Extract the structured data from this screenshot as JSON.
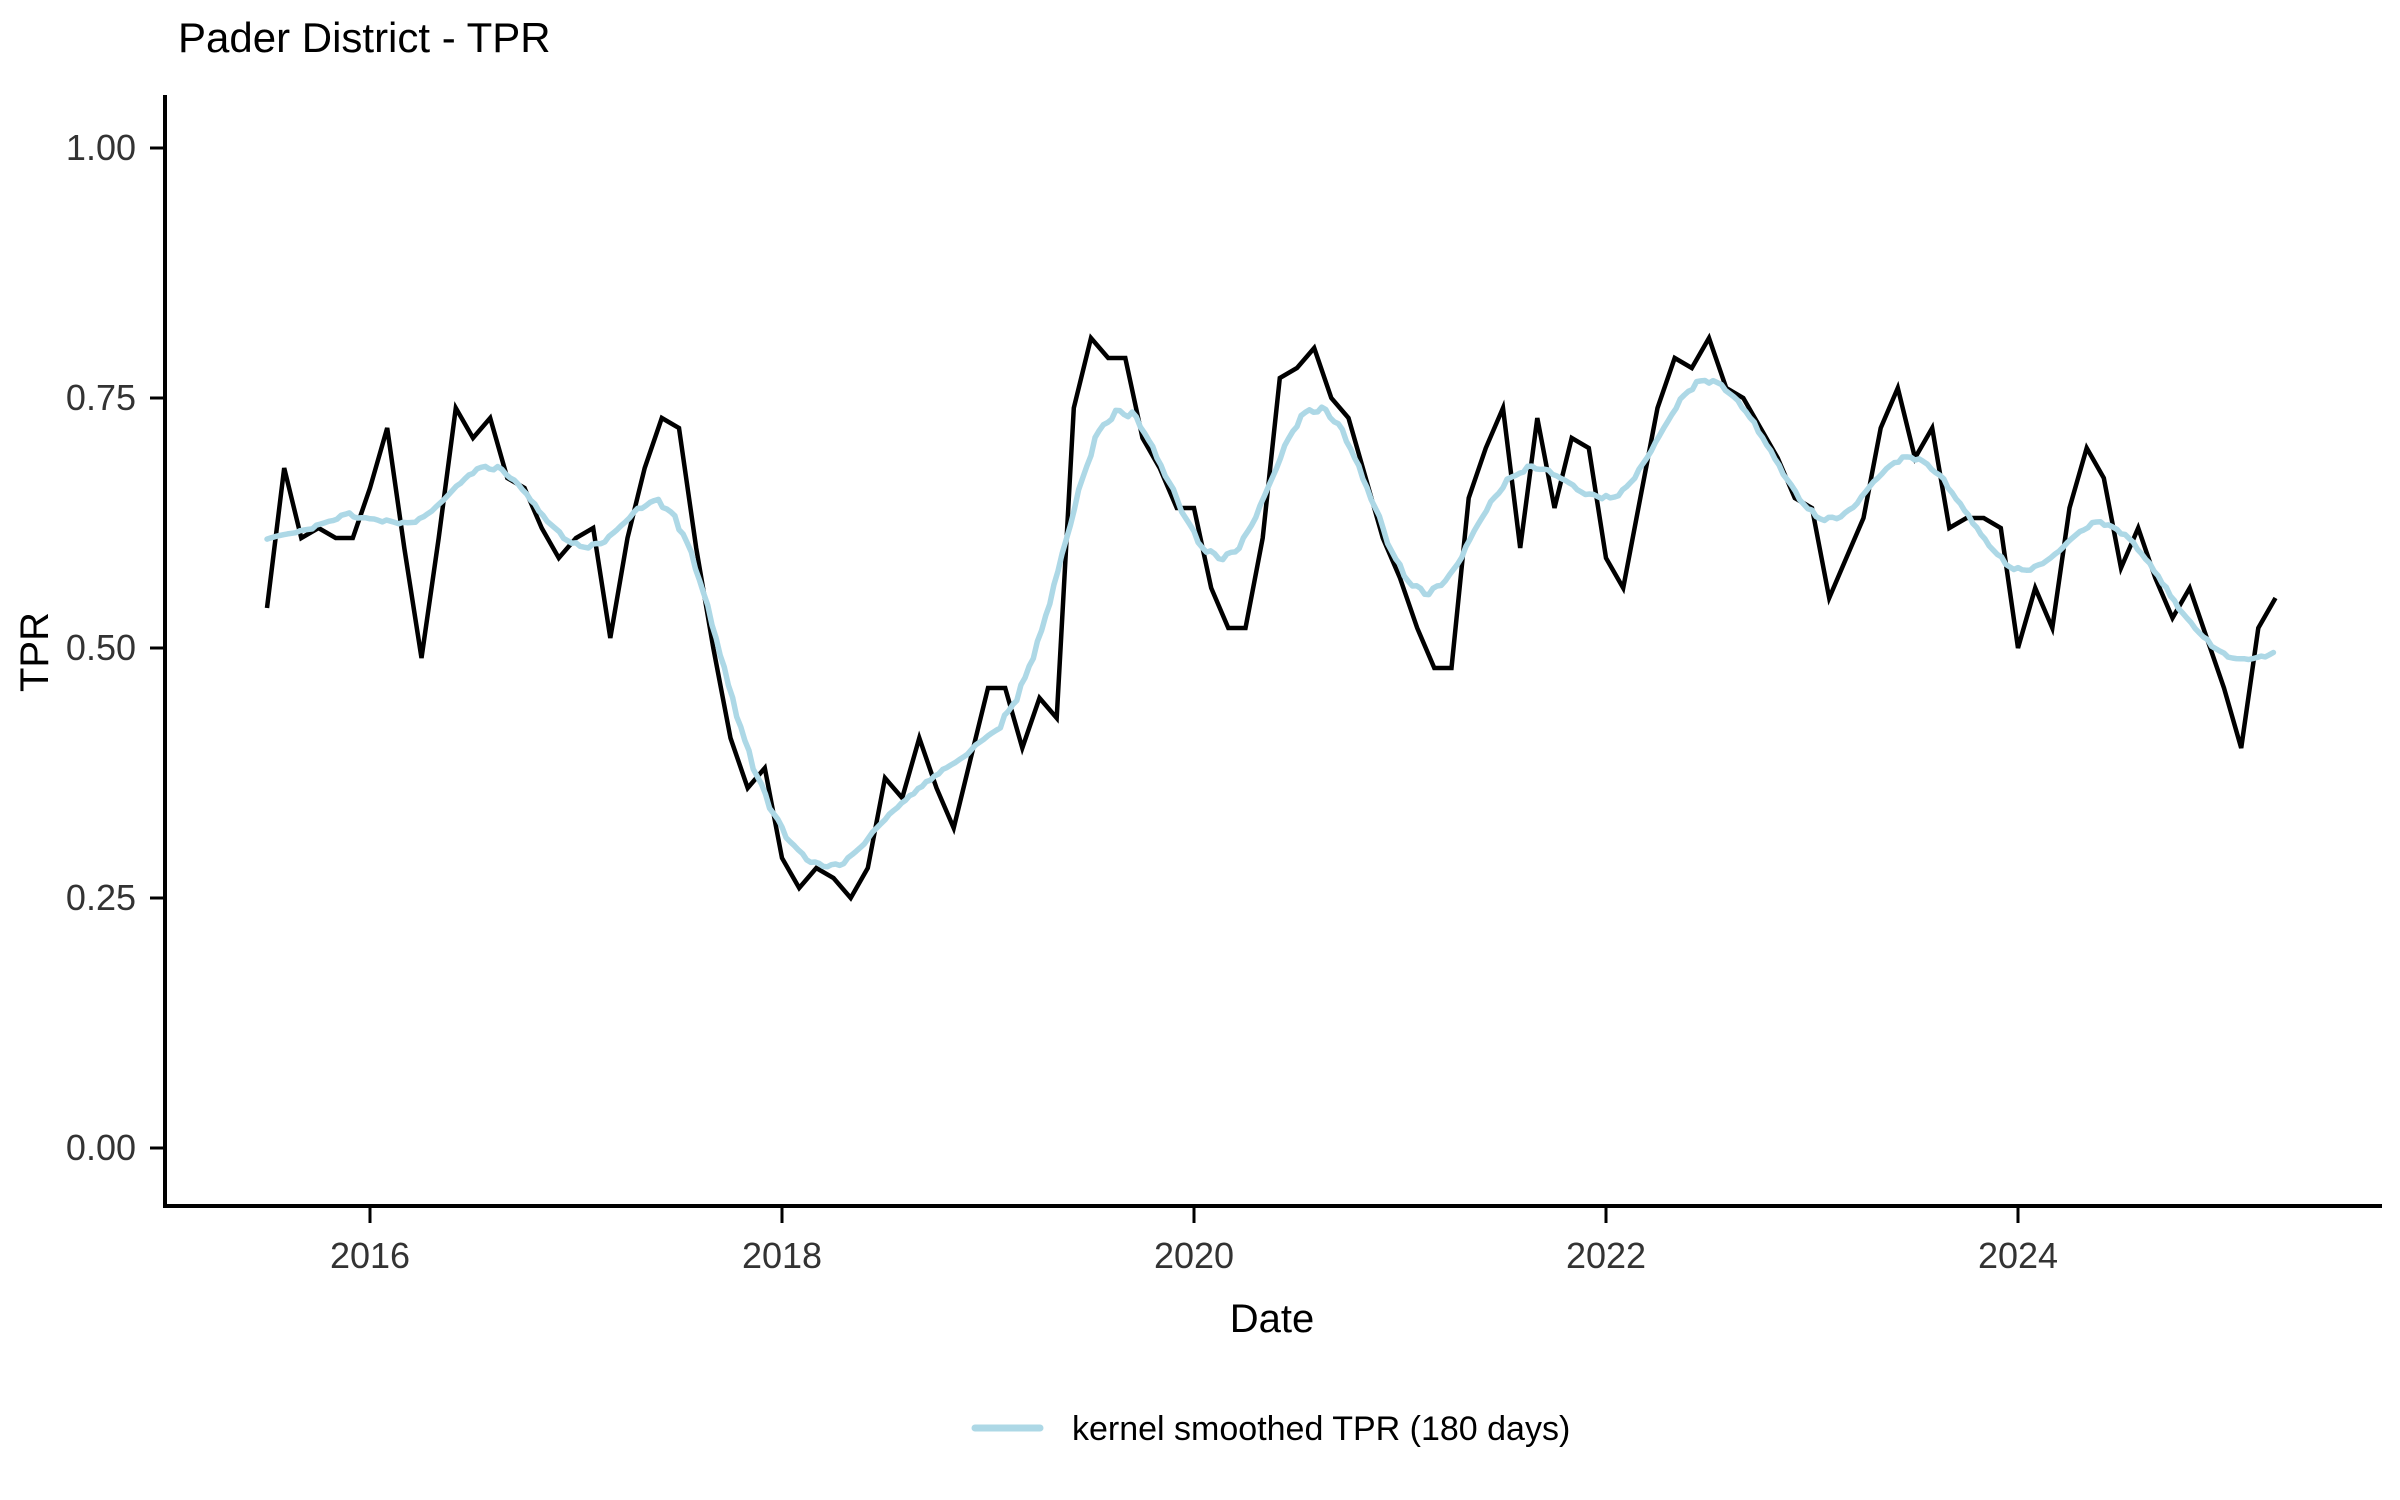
{
  "chart": {
    "title": "Pader District - TPR",
    "xlabel": "Date",
    "ylabel": "TPR",
    "legend": {
      "label": "kernel smoothed TPR (180 days)",
      "swatch_color": "#ADD8E6"
    },
    "colors": {
      "raw_line": "#000000",
      "smoothed_line": "#ADD8E6",
      "axis": "#000000",
      "tick_text": "#333333",
      "title_text": "#000000"
    }
  },
  "chart_data": {
    "type": "line",
    "title": "Pader District - TPR",
    "xlabel": "Date",
    "ylabel": "TPR",
    "ylim": [
      0,
      1
    ],
    "grid": false,
    "legend_position": "bottom",
    "x_tick_labels": [
      "2016",
      "2018",
      "2020",
      "2022",
      "2024"
    ],
    "x_tick_years": [
      2016,
      2018,
      2020,
      2022,
      2024
    ],
    "y_tick_labels": [
      "0.00",
      "0.25",
      "0.50",
      "0.75",
      "1.00"
    ],
    "y_tick_values": [
      0.0,
      0.25,
      0.5,
      0.75,
      1.0
    ],
    "series": [
      {
        "name": "TPR",
        "style": "solid",
        "color": "#000000",
        "dates": [
          "2015-07",
          "2015-08",
          "2015-09",
          "2015-10",
          "2015-11",
          "2015-12",
          "2016-01",
          "2016-02",
          "2016-03",
          "2016-04",
          "2016-05",
          "2016-06",
          "2016-07",
          "2016-08",
          "2016-09",
          "2016-10",
          "2016-11",
          "2016-12",
          "2017-01",
          "2017-02",
          "2017-03",
          "2017-04",
          "2017-05",
          "2017-06",
          "2017-07",
          "2017-08",
          "2017-09",
          "2017-10",
          "2017-11",
          "2017-12",
          "2018-01",
          "2018-02",
          "2018-03",
          "2018-04",
          "2018-05",
          "2018-06",
          "2018-07",
          "2018-08",
          "2018-09",
          "2018-10",
          "2018-11",
          "2018-12",
          "2019-01",
          "2019-02",
          "2019-03",
          "2019-04",
          "2019-05",
          "2019-06",
          "2019-07",
          "2019-08",
          "2019-09",
          "2019-10",
          "2019-11",
          "2019-12",
          "2020-01",
          "2020-02",
          "2020-03",
          "2020-04",
          "2020-05",
          "2020-06",
          "2020-07",
          "2020-08",
          "2020-09",
          "2020-10",
          "2020-11",
          "2020-12",
          "2021-01",
          "2021-02",
          "2021-03",
          "2021-04",
          "2021-05",
          "2021-06",
          "2021-07",
          "2021-08",
          "2021-09",
          "2021-10",
          "2021-11",
          "2021-12",
          "2022-01",
          "2022-02",
          "2022-03",
          "2022-04",
          "2022-05",
          "2022-06",
          "2022-07",
          "2022-08",
          "2022-09",
          "2022-10",
          "2022-11",
          "2022-12",
          "2023-01",
          "2023-02",
          "2023-03",
          "2023-04",
          "2023-05",
          "2023-06",
          "2023-07",
          "2023-08",
          "2023-09",
          "2023-10",
          "2023-11",
          "2023-12",
          "2024-01",
          "2024-02",
          "2024-03",
          "2024-04",
          "2024-05",
          "2024-06",
          "2024-07",
          "2024-08",
          "2024-09",
          "2024-10",
          "2024-11",
          "2024-12",
          "2025-01",
          "2025-02",
          "2025-03",
          "2025-04"
        ],
        "values": [
          0.54,
          0.68,
          0.61,
          0.62,
          0.61,
          0.61,
          0.66,
          0.72,
          0.6,
          0.49,
          0.61,
          0.74,
          0.71,
          0.73,
          0.67,
          0.66,
          0.62,
          0.59,
          0.61,
          0.62,
          0.51,
          0.61,
          0.68,
          0.73,
          0.72,
          0.6,
          0.5,
          0.41,
          0.36,
          0.38,
          0.29,
          0.26,
          0.28,
          0.27,
          0.25,
          0.28,
          0.37,
          0.35,
          0.41,
          0.36,
          0.32,
          0.39,
          0.46,
          0.46,
          0.4,
          0.45,
          0.43,
          0.74,
          0.81,
          0.79,
          0.79,
          0.71,
          0.68,
          0.64,
          0.64,
          0.56,
          0.52,
          0.52,
          0.61,
          0.77,
          0.78,
          0.8,
          0.75,
          0.73,
          0.67,
          0.61,
          0.57,
          0.52,
          0.48,
          0.48,
          0.65,
          0.7,
          0.74,
          0.6,
          0.73,
          0.64,
          0.71,
          0.7,
          0.59,
          0.56,
          0.65,
          0.74,
          0.79,
          0.78,
          0.81,
          0.76,
          0.75,
          0.72,
          0.69,
          0.65,
          0.64,
          0.55,
          0.59,
          0.63,
          0.72,
          0.76,
          0.69,
          0.72,
          0.62,
          0.63,
          0.63,
          0.62,
          0.5,
          0.56,
          0.52,
          0.64,
          0.7,
          0.67,
          0.58,
          0.62,
          0.57,
          0.53,
          0.56,
          0.51,
          0.46,
          0.4,
          0.52,
          0.55
        ]
      },
      {
        "name": "kernel smoothed TPR (180 days)",
        "style": "solid",
        "color": "#ADD8E6",
        "derived_from": "TPR",
        "method": "gaussian kernel smoothing, 180 day window"
      }
    ]
  }
}
